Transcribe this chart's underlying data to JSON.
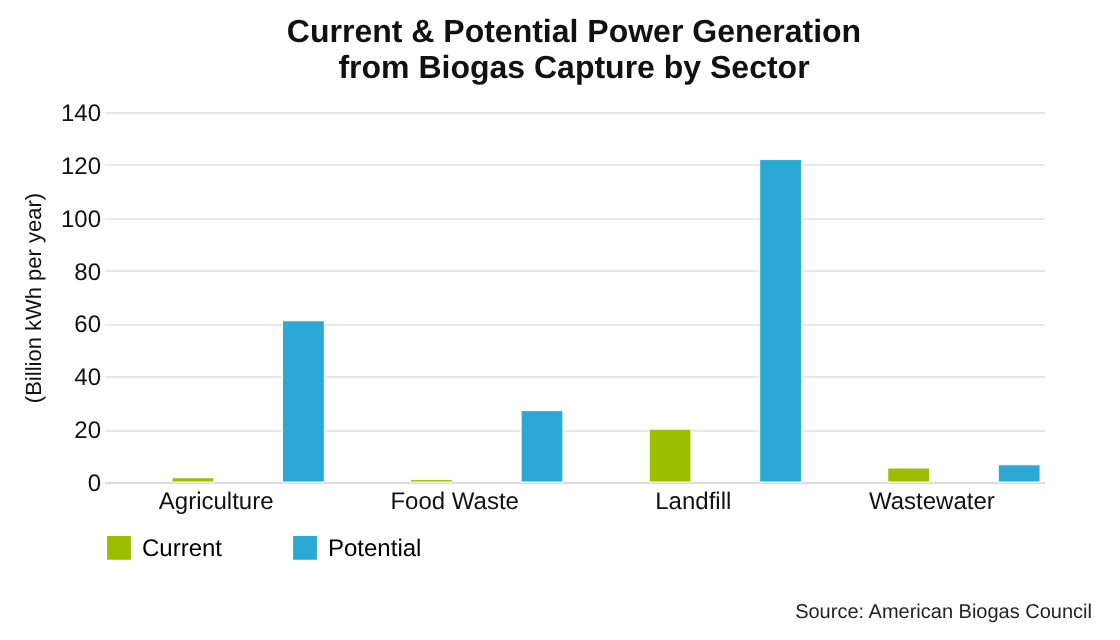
{
  "chart_data": {
    "type": "bar",
    "title": "Current & Potential Power Generation\nfrom Biogas Capture by Sector",
    "ylabel": "(Billion kWh per year)",
    "categories": [
      "Agriculture",
      "Food Waste",
      "Landfill",
      "Wastewater"
    ],
    "series": [
      {
        "name": "Current",
        "color": "#9bbf00",
        "values": [
          1.6,
          0.9,
          20,
          5.3
        ]
      },
      {
        "name": "Potential",
        "color": "#29a9d4",
        "values": [
          61,
          27,
          122,
          6.5
        ]
      }
    ],
    "ylim": [
      0,
      140
    ],
    "yticks": [
      0,
      20,
      40,
      60,
      80,
      100,
      120,
      140
    ],
    "grid": "y",
    "legend": "bottom",
    "annotations": [
      "Source: American Biogas Council"
    ]
  }
}
